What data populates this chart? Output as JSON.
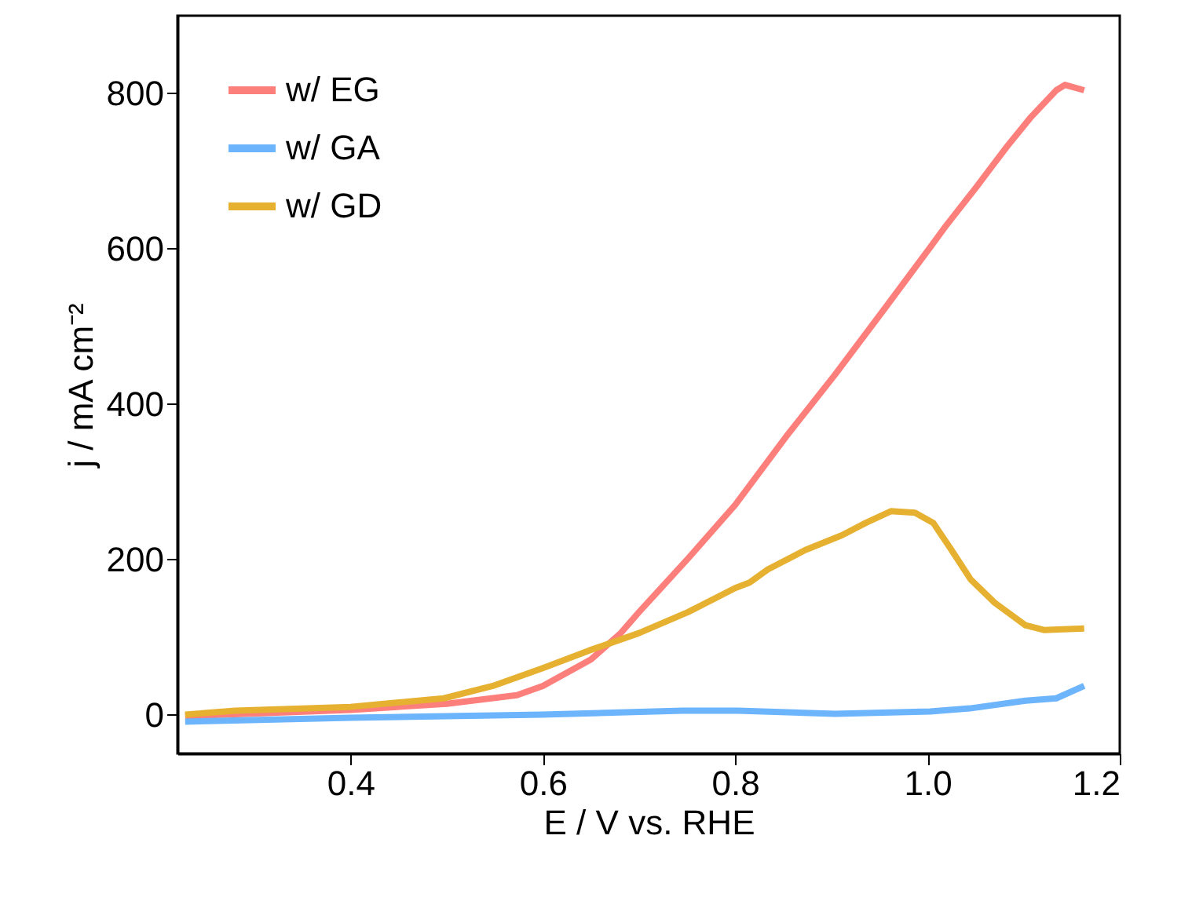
{
  "chart_data": {
    "type": "line",
    "xlabel": "E / V vs. RHE",
    "ylabel": "j / mA cm⁻²",
    "xlim": [
      0.22,
      1.2
    ],
    "xticks": [
      0.4,
      0.6,
      0.8,
      {
        "value": 1.0,
        "label": "1.0"
      },
      1.2
    ],
    "ylim": [
      -50,
      900
    ],
    "yticks": [
      0,
      200,
      400,
      600,
      800
    ],
    "grid": false,
    "legend": "top left",
    "line_style": "solid",
    "marker": "none",
    "series": [
      {
        "name": "w/ EG",
        "color": "#fd7f7c",
        "x": [
          0.228,
          0.4,
          0.5,
          0.573,
          0.6,
          0.65,
          0.681,
          0.7,
          0.751,
          0.8,
          0.853,
          0.904,
          0.955,
          1.003,
          1.019,
          1.05,
          1.083,
          1.108,
          1.134,
          1.143,
          1.163
        ],
        "values": [
          -2,
          6,
          14,
          25,
          37,
          71,
          105,
          132,
          201,
          270,
          358,
          438,
          522,
          602,
          629,
          678,
          732,
          770,
          804,
          811,
          804
        ]
      },
      {
        "name": "w/ GA",
        "color": "#6cb4fc",
        "x": [
          0.228,
          0.4,
          0.599,
          0.745,
          0.803,
          0.904,
          1.003,
          1.044,
          1.102,
          1.134,
          1.163
        ],
        "values": [
          -9,
          -4,
          0,
          5,
          5,
          1,
          4,
          8,
          18,
          21,
          37
        ]
      },
      {
        "name": "w/ GD",
        "color": "#e6b030",
        "x": [
          0.228,
          0.28,
          0.4,
          0.497,
          0.548,
          0.6,
          0.649,
          0.7,
          0.751,
          0.8,
          0.815,
          0.834,
          0.873,
          0.911,
          0.936,
          0.962,
          0.987,
          1.006,
          1.025,
          1.045,
          1.07,
          1.102,
          1.121,
          1.163
        ],
        "values": [
          0,
          5,
          10,
          21,
          37,
          60,
          83,
          105,
          132,
          163,
          170,
          187,
          212,
          231,
          247,
          262,
          260,
          247,
          212,
          174,
          144,
          115,
          109,
          111
        ]
      }
    ]
  }
}
